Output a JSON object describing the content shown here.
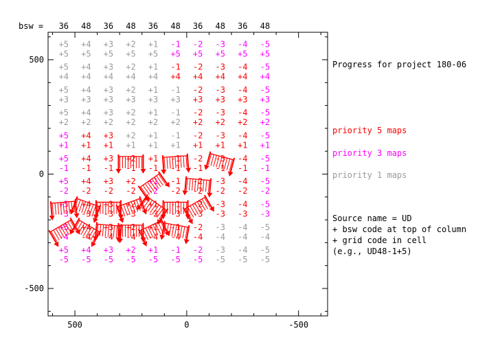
{
  "chart_data": {
    "type": "scatter",
    "title": "Progress for project 180-06",
    "bsw_label": "bsw =",
    "bsw_codes": [
      "36",
      "48",
      "36",
      "48",
      "36",
      "48",
      "36",
      "48",
      "36",
      "48"
    ],
    "grid_columns": [
      "+5",
      "+4",
      "+3",
      "+2",
      "+1",
      "-1",
      "-2",
      "-3",
      "-4",
      "-5"
    ],
    "grid_rows": [
      "+5",
      "+4",
      "+3",
      "+2",
      "+1",
      "-1",
      "-2",
      "-3",
      "-4",
      "-5"
    ],
    "x_ticks": [
      "500",
      "0",
      "-500"
    ],
    "y_ticks": [
      "500",
      "0",
      "-500"
    ],
    "xlim": [
      620,
      -630
    ],
    "ylim": [
      -620,
      620
    ],
    "legend": [
      {
        "label": "priority 5 maps",
        "color": "#ff0000"
      },
      {
        "label": "priority 3 maps",
        "color": "#ff00ff"
      },
      {
        "label": "priority 1 maps",
        "color": "#999999"
      }
    ],
    "note_lines": [
      "Source name = UD",
      "+ bsw code at top of column",
      "+ grid code in cell",
      "(e.g., UD48-1+5)"
    ],
    "priority_grid": [
      [
        1,
        1,
        1,
        1,
        1,
        3,
        3,
        3,
        3,
        3
      ],
      [
        1,
        1,
        1,
        1,
        1,
        5,
        5,
        5,
        5,
        3
      ],
      [
        1,
        1,
        1,
        1,
        1,
        1,
        5,
        5,
        5,
        3
      ],
      [
        1,
        1,
        1,
        1,
        1,
        1,
        5,
        5,
        5,
        3
      ],
      [
        3,
        5,
        5,
        1,
        1,
        1,
        5,
        5,
        5,
        3
      ],
      [
        3,
        5,
        5,
        5,
        5,
        5,
        5,
        5,
        5,
        3
      ],
      [
        3,
        5,
        5,
        5,
        3,
        5,
        5,
        5,
        5,
        3
      ],
      [
        3,
        5,
        5,
        5,
        5,
        5,
        5,
        5,
        5,
        3
      ],
      [
        3,
        5,
        5,
        5,
        5,
        5,
        5,
        1,
        1,
        1
      ],
      [
        3,
        3,
        3,
        3,
        3,
        3,
        3,
        1,
        1,
        1
      ]
    ],
    "observed_maps": [
      {
        "row": 5,
        "col": 3,
        "angle": 0
      },
      {
        "row": 5,
        "col": 5,
        "angle": -4
      },
      {
        "row": 5,
        "col": 7,
        "angle": 15
      },
      {
        "row": 6,
        "col": 4,
        "angle": -35
      },
      {
        "row": 6,
        "col": 6,
        "angle": 5
      },
      {
        "row": 7,
        "col": 0,
        "angle": -5
      },
      {
        "row": 7,
        "col": 1,
        "angle": 20
      },
      {
        "row": 7,
        "col": 2,
        "angle": 0
      },
      {
        "row": 7,
        "col": 3,
        "angle": -20
      },
      {
        "row": 7,
        "col": 4,
        "angle": 35
      },
      {
        "row": 7,
        "col": 5,
        "angle": 0
      },
      {
        "row": 7,
        "col": 6,
        "angle": -30
      },
      {
        "row": 8,
        "col": 0,
        "angle": -30
      },
      {
        "row": 8,
        "col": 1,
        "angle": 30
      },
      {
        "row": 8,
        "col": 2,
        "angle": 5
      },
      {
        "row": 8,
        "col": 3,
        "angle": 0
      },
      {
        "row": 8,
        "col": 4,
        "angle": -25
      },
      {
        "row": 8,
        "col": 5,
        "angle": 10
      }
    ]
  }
}
